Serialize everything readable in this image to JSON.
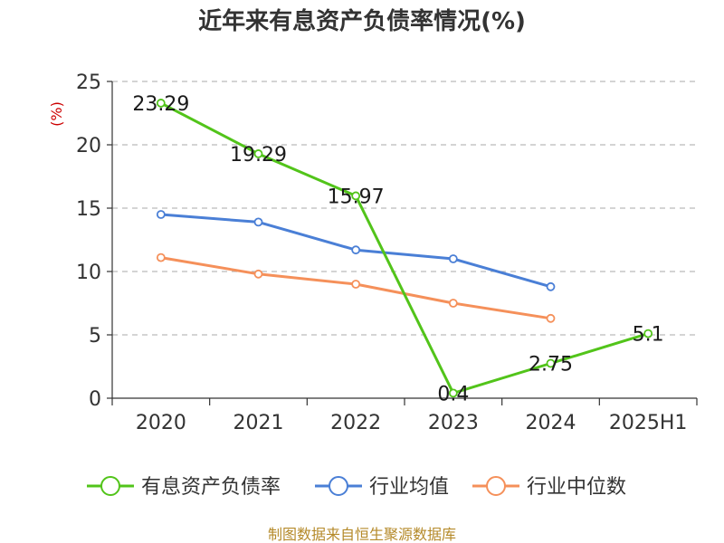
{
  "chart_data": {
    "type": "line",
    "title": "近年来有息资产负债率情况(%)",
    "ylabel": "(%)",
    "categories": [
      "2020",
      "2021",
      "2022",
      "2023",
      "2024",
      "2025H1"
    ],
    "yticks": [
      "0",
      "5",
      "10",
      "15",
      "20",
      "25"
    ],
    "ylim": [
      0,
      25
    ],
    "grid": true,
    "legend_position": "bottom",
    "series": [
      {
        "name": "有息资产负债率",
        "color": "#52c41a",
        "values": [
          23.29,
          19.29,
          15.97,
          0.4,
          2.75,
          5.1
        ],
        "labels": [
          "23.29",
          "19.29",
          "15.97",
          "0.4",
          "2.75",
          "5.1"
        ]
      },
      {
        "name": "行业均值",
        "color": "#4a7fd6",
        "values": [
          14.5,
          13.9,
          11.7,
          11.0,
          8.8,
          null
        ]
      },
      {
        "name": "行业中位数",
        "color": "#f5905a",
        "values": [
          11.1,
          9.8,
          9.0,
          7.5,
          6.3,
          null
        ]
      }
    ]
  },
  "footer": {
    "source": "制图数据来自恒生聚源数据库"
  }
}
